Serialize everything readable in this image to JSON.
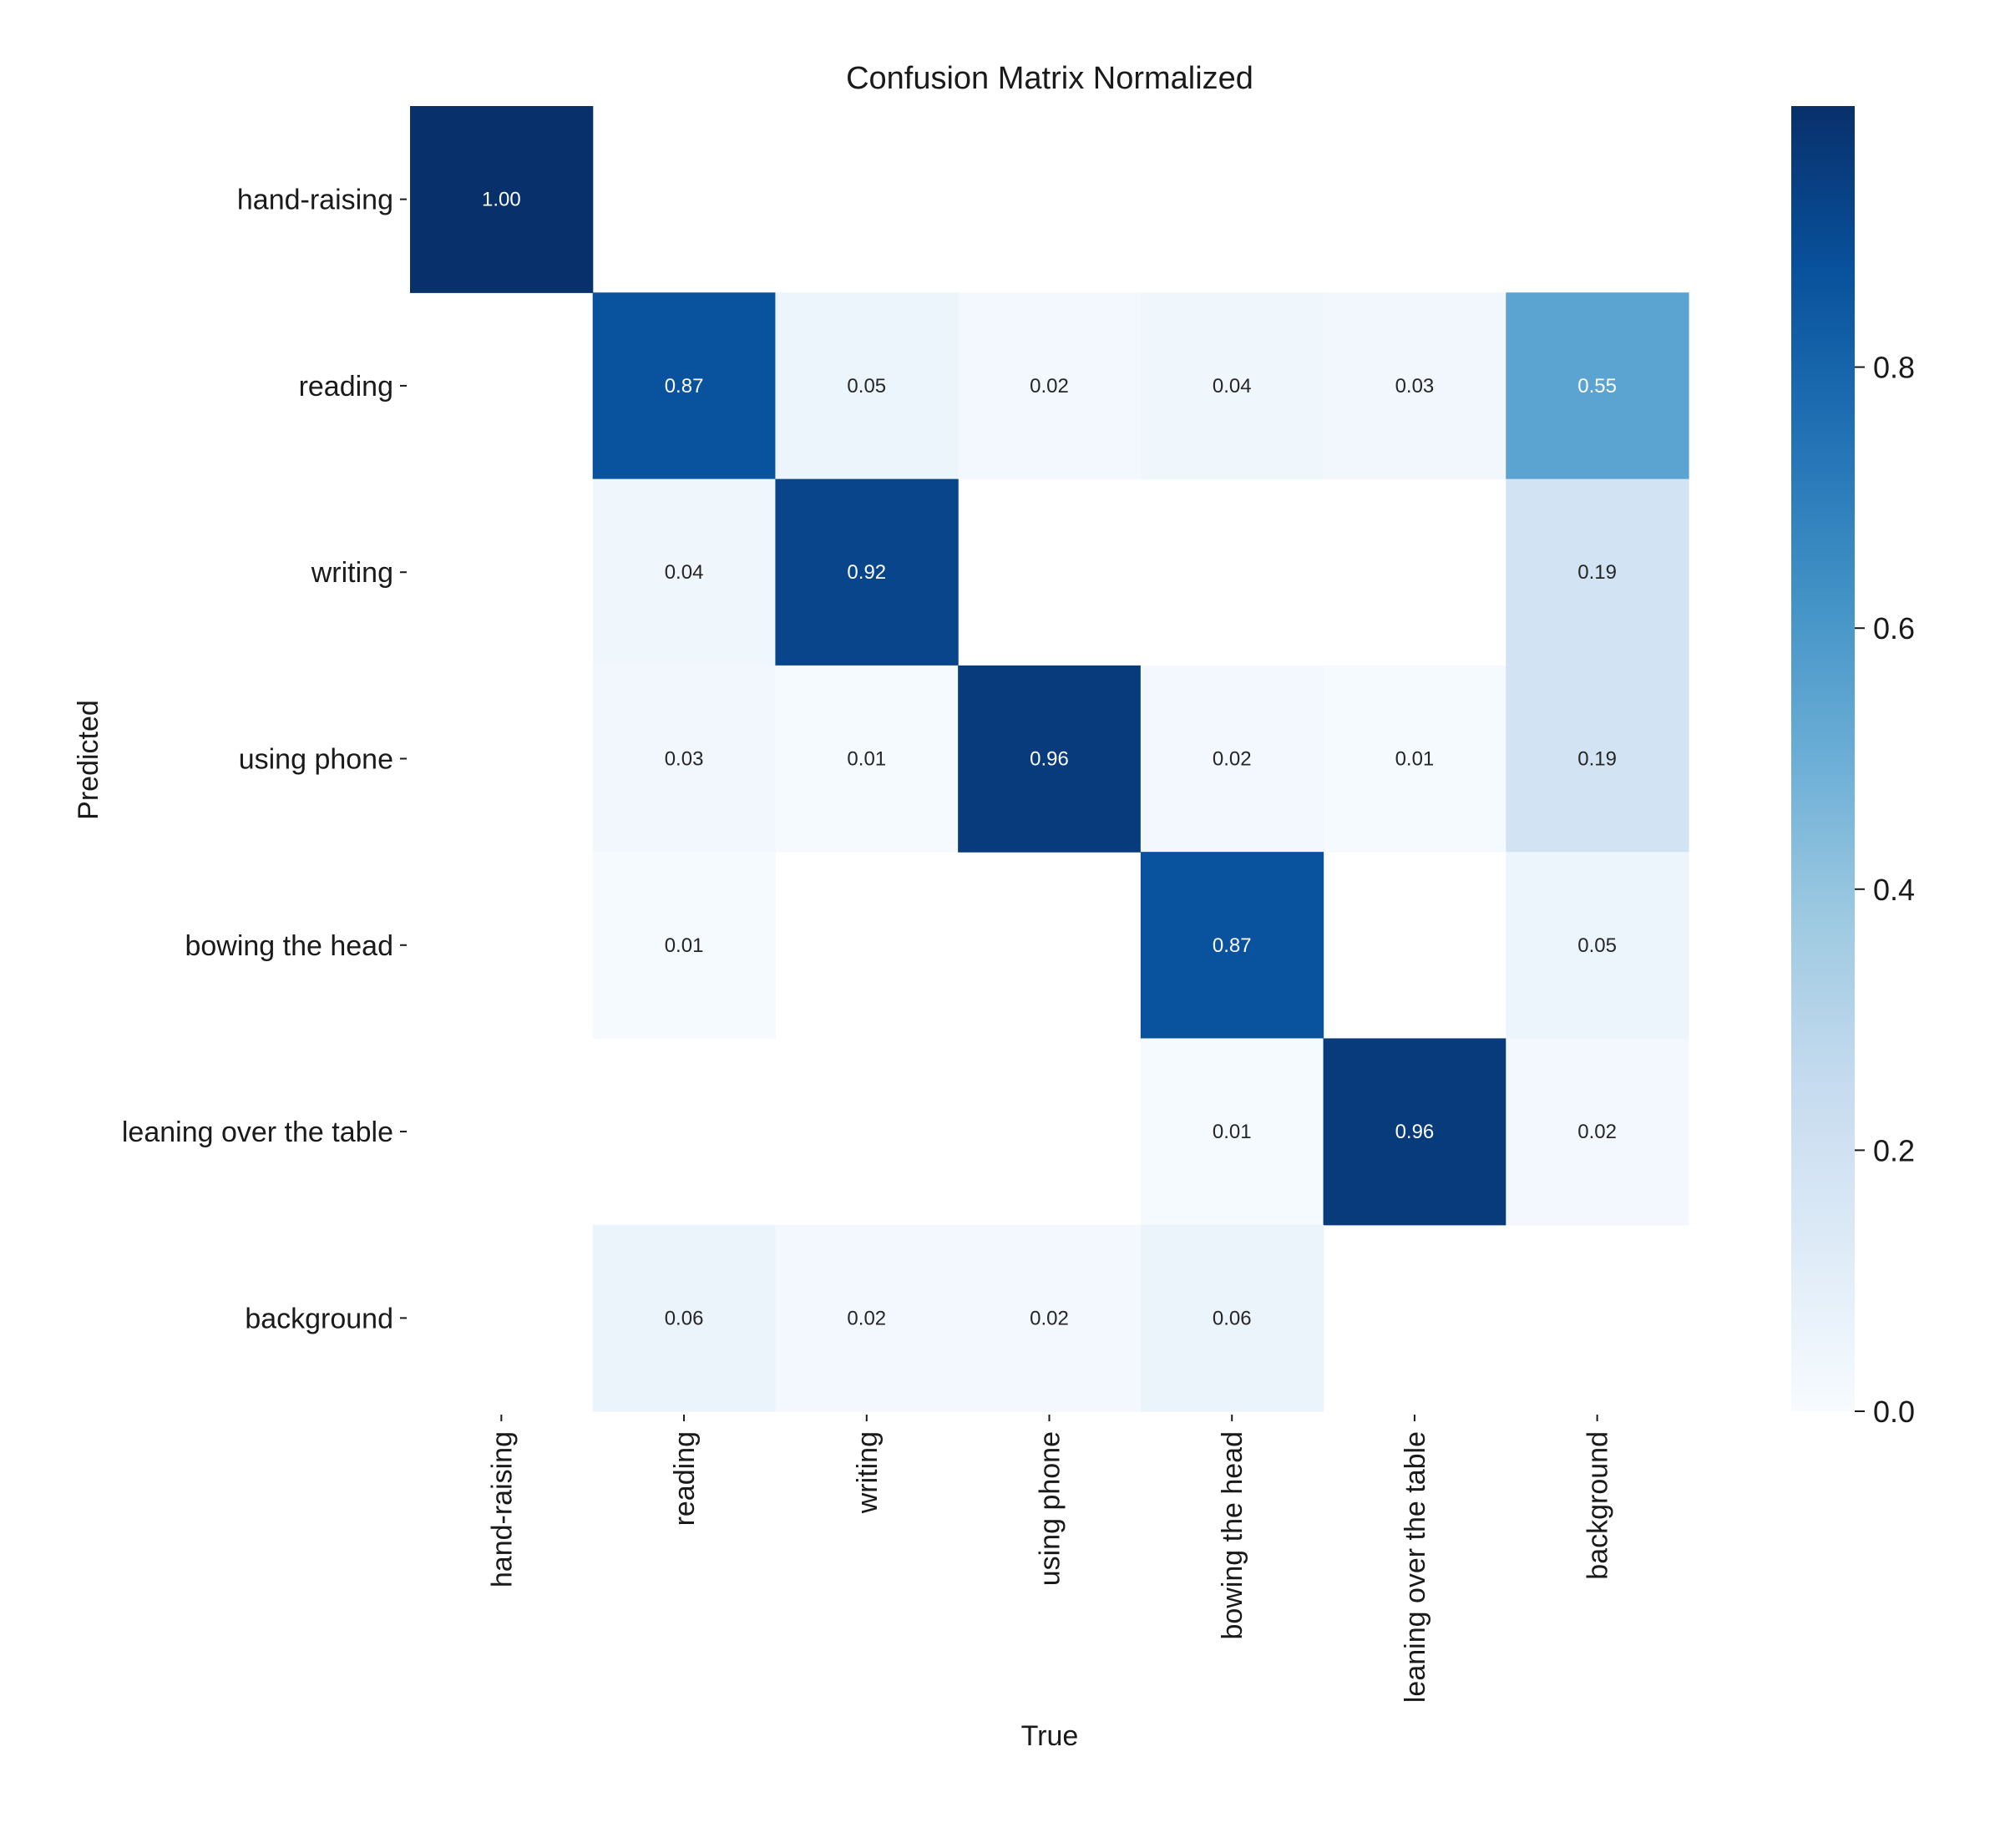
{
  "chart_data": {
    "type": "heatmap",
    "title": "Confusion Matrix Normalized",
    "xlabel": "True",
    "ylabel": "Predicted",
    "x_categories": [
      "hand-raising",
      "reading",
      "writing",
      "using phone",
      "bowing the head",
      "leaning over the table",
      "background"
    ],
    "y_categories": [
      "hand-raising",
      "reading",
      "writing",
      "using phone",
      "bowing the head",
      "leaning over the table",
      "background"
    ],
    "values": [
      [
        1.0,
        null,
        null,
        null,
        null,
        null,
        null
      ],
      [
        null,
        0.87,
        0.05,
        0.02,
        0.04,
        0.03,
        0.55
      ],
      [
        null,
        0.04,
        0.92,
        null,
        null,
        null,
        0.19
      ],
      [
        null,
        0.03,
        0.01,
        0.96,
        0.02,
        0.01,
        0.19
      ],
      [
        null,
        0.01,
        null,
        null,
        0.87,
        null,
        0.05
      ],
      [
        null,
        null,
        null,
        null,
        0.01,
        0.96,
        0.02
      ],
      [
        null,
        0.06,
        0.02,
        0.02,
        0.06,
        null,
        null
      ]
    ],
    "value_format": "0.00",
    "colormap": "Blues",
    "colorbar": {
      "range": [
        0.0,
        1.0
      ],
      "ticks": [
        0.0,
        0.2,
        0.4,
        0.6,
        0.8
      ],
      "tick_labels": [
        "0.0",
        "0.2",
        "0.4",
        "0.6",
        "0.8"
      ]
    },
    "grid": false
  }
}
